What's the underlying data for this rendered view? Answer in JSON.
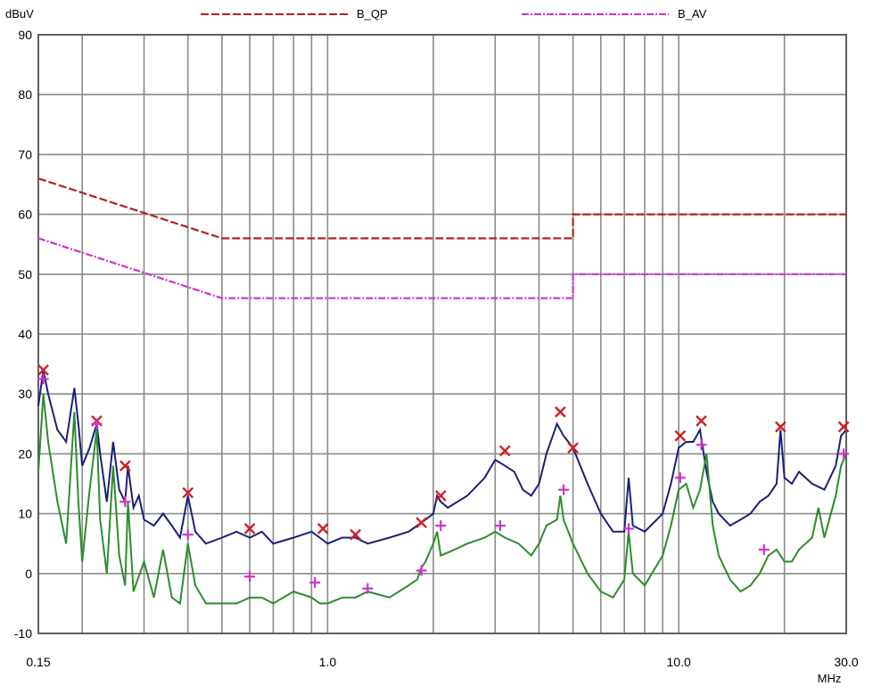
{
  "chart_data": {
    "type": "line",
    "ylabel": "dBuV",
    "xlabel": "MHz",
    "x_scale": "log",
    "xlim": [
      0.15,
      30.0
    ],
    "ylim": [
      -10,
      90
    ],
    "y_ticks": [
      -10,
      0,
      10,
      20,
      30,
      40,
      50,
      60,
      70,
      80,
      90
    ],
    "x_tick_labels": [
      {
        "value": 0.15,
        "label": "0.15"
      },
      {
        "value": 1.0,
        "label": "1.0"
      },
      {
        "value": 10.0,
        "label": "10.0"
      },
      {
        "value": 30.0,
        "label": "30.0"
      }
    ],
    "x_gridlines": [
      0.15,
      0.2,
      0.3,
      0.4,
      0.5,
      0.6,
      0.7,
      0.8,
      0.9,
      1,
      2,
      3,
      4,
      5,
      6,
      7,
      8,
      9,
      10,
      20,
      30
    ],
    "grid": true,
    "legend_position": "top",
    "series": [
      {
        "name": "B_QP",
        "color": "#b22222",
        "style": "dashed",
        "legend": true,
        "points": [
          [
            0.15,
            66
          ],
          [
            0.5,
            56
          ],
          [
            5.0,
            56
          ],
          [
            5.0,
            60
          ],
          [
            30.0,
            60
          ]
        ]
      },
      {
        "name": "B_AV",
        "color": "#cc33cc",
        "style": "dashdot",
        "legend": true,
        "points": [
          [
            0.15,
            56
          ],
          [
            0.5,
            46
          ],
          [
            5.0,
            46
          ],
          [
            5.0,
            50
          ],
          [
            30.0,
            50
          ]
        ]
      },
      {
        "color": "#1c1f7a",
        "style": "solid",
        "legend": false,
        "points": [
          [
            0.15,
            28
          ],
          [
            0.155,
            34
          ],
          [
            0.16,
            30
          ],
          [
            0.17,
            24
          ],
          [
            0.18,
            22
          ],
          [
            0.19,
            31
          ],
          [
            0.195,
            25
          ],
          [
            0.2,
            18
          ],
          [
            0.21,
            21
          ],
          [
            0.22,
            25
          ],
          [
            0.225,
            20
          ],
          [
            0.235,
            12
          ],
          [
            0.245,
            22
          ],
          [
            0.255,
            14
          ],
          [
            0.265,
            12
          ],
          [
            0.27,
            18
          ],
          [
            0.28,
            11
          ],
          [
            0.29,
            13
          ],
          [
            0.3,
            9
          ],
          [
            0.32,
            8
          ],
          [
            0.34,
            10
          ],
          [
            0.36,
            8
          ],
          [
            0.38,
            6
          ],
          [
            0.4,
            13
          ],
          [
            0.42,
            7
          ],
          [
            0.45,
            5
          ],
          [
            0.5,
            6
          ],
          [
            0.55,
            7
          ],
          [
            0.6,
            6
          ],
          [
            0.65,
            7
          ],
          [
            0.7,
            5
          ],
          [
            0.8,
            6
          ],
          [
            0.9,
            7
          ],
          [
            0.95,
            6
          ],
          [
            1.0,
            5
          ],
          [
            1.1,
            6
          ],
          [
            1.2,
            6
          ],
          [
            1.3,
            5
          ],
          [
            1.5,
            6
          ],
          [
            1.7,
            7
          ],
          [
            1.8,
            8
          ],
          [
            1.9,
            9
          ],
          [
            2.0,
            10
          ],
          [
            2.05,
            13
          ],
          [
            2.1,
            12
          ],
          [
            2.2,
            11
          ],
          [
            2.5,
            13
          ],
          [
            2.8,
            16
          ],
          [
            3.0,
            19
          ],
          [
            3.2,
            18
          ],
          [
            3.4,
            17
          ],
          [
            3.6,
            14
          ],
          [
            3.8,
            13
          ],
          [
            4.0,
            15
          ],
          [
            4.2,
            20
          ],
          [
            4.5,
            25
          ],
          [
            4.7,
            23
          ],
          [
            5.0,
            21
          ],
          [
            5.5,
            15
          ],
          [
            6.0,
            10
          ],
          [
            6.5,
            7
          ],
          [
            7.0,
            7
          ],
          [
            7.2,
            16
          ],
          [
            7.4,
            8
          ],
          [
            8.0,
            7
          ],
          [
            9.0,
            10
          ],
          [
            9.5,
            15
          ],
          [
            10.0,
            21
          ],
          [
            10.5,
            22
          ],
          [
            11.0,
            22
          ],
          [
            11.5,
            24
          ],
          [
            12.0,
            17
          ],
          [
            12.5,
            12
          ],
          [
            13.0,
            10
          ],
          [
            14.0,
            8
          ],
          [
            15.0,
            9
          ],
          [
            16.0,
            10
          ],
          [
            17.0,
            12
          ],
          [
            18.0,
            13
          ],
          [
            19.0,
            15
          ],
          [
            19.5,
            24
          ],
          [
            20.0,
            16
          ],
          [
            21.0,
            15
          ],
          [
            22.0,
            17
          ],
          [
            24.0,
            15
          ],
          [
            26.0,
            14
          ],
          [
            28.0,
            18
          ],
          [
            29.0,
            23
          ],
          [
            30.0,
            24
          ]
        ]
      },
      {
        "color": "#2e8b2e",
        "style": "solid",
        "legend": false,
        "points": [
          [
            0.15,
            17
          ],
          [
            0.155,
            30
          ],
          [
            0.16,
            22
          ],
          [
            0.17,
            12
          ],
          [
            0.18,
            5
          ],
          [
            0.19,
            27
          ],
          [
            0.195,
            12
          ],
          [
            0.2,
            2
          ],
          [
            0.21,
            14
          ],
          [
            0.22,
            24
          ],
          [
            0.225,
            9
          ],
          [
            0.235,
            0
          ],
          [
            0.245,
            18
          ],
          [
            0.255,
            3
          ],
          [
            0.265,
            -2
          ],
          [
            0.27,
            12
          ],
          [
            0.28,
            -3
          ],
          [
            0.3,
            2
          ],
          [
            0.32,
            -4
          ],
          [
            0.34,
            4
          ],
          [
            0.36,
            -4
          ],
          [
            0.38,
            -5
          ],
          [
            0.4,
            5
          ],
          [
            0.42,
            -2
          ],
          [
            0.45,
            -5
          ],
          [
            0.5,
            -5
          ],
          [
            0.55,
            -5
          ],
          [
            0.6,
            -4
          ],
          [
            0.65,
            -4
          ],
          [
            0.7,
            -5
          ],
          [
            0.8,
            -3
          ],
          [
            0.9,
            -4
          ],
          [
            0.95,
            -5
          ],
          [
            1.0,
            -5
          ],
          [
            1.1,
            -4
          ],
          [
            1.2,
            -4
          ],
          [
            1.3,
            -3
          ],
          [
            1.5,
            -4
          ],
          [
            1.7,
            -2
          ],
          [
            1.8,
            -1
          ],
          [
            1.85,
            1
          ],
          [
            1.9,
            2
          ],
          [
            2.0,
            5
          ],
          [
            2.05,
            7
          ],
          [
            2.1,
            3
          ],
          [
            2.3,
            4
          ],
          [
            2.5,
            5
          ],
          [
            2.8,
            6
          ],
          [
            3.0,
            7
          ],
          [
            3.2,
            6
          ],
          [
            3.5,
            5
          ],
          [
            3.8,
            3
          ],
          [
            4.0,
            5
          ],
          [
            4.2,
            8
          ],
          [
            4.5,
            9
          ],
          [
            4.6,
            13
          ],
          [
            4.7,
            9
          ],
          [
            5.0,
            5
          ],
          [
            5.5,
            0
          ],
          [
            6.0,
            -3
          ],
          [
            6.5,
            -4
          ],
          [
            7.0,
            -1
          ],
          [
            7.2,
            7
          ],
          [
            7.4,
            0
          ],
          [
            8.0,
            -2
          ],
          [
            9.0,
            3
          ],
          [
            9.5,
            8
          ],
          [
            10.0,
            14
          ],
          [
            10.5,
            15
          ],
          [
            11.0,
            11
          ],
          [
            11.5,
            14
          ],
          [
            12.0,
            20
          ],
          [
            12.5,
            8
          ],
          [
            13.0,
            3
          ],
          [
            14.0,
            -1
          ],
          [
            15.0,
            -3
          ],
          [
            16.0,
            -2
          ],
          [
            17.0,
            0
          ],
          [
            18.0,
            3
          ],
          [
            19.0,
            4
          ],
          [
            20.0,
            2
          ],
          [
            21.0,
            2
          ],
          [
            22.0,
            4
          ],
          [
            24.0,
            6
          ],
          [
            25.0,
            11
          ],
          [
            26.0,
            6
          ],
          [
            28.0,
            13
          ],
          [
            29.0,
            18
          ],
          [
            30.0,
            20
          ]
        ]
      }
    ],
    "qp_markers": {
      "color": "#cc2222",
      "points": [
        [
          0.155,
          34
        ],
        [
          0.22,
          25.5
        ],
        [
          0.265,
          18
        ],
        [
          0.4,
          13.5
        ],
        [
          0.6,
          7.5
        ],
        [
          0.97,
          7.5
        ],
        [
          1.2,
          6.5
        ],
        [
          1.85,
          8.5
        ],
        [
          2.1,
          13
        ],
        [
          3.2,
          20.5
        ],
        [
          4.6,
          27
        ],
        [
          5.0,
          21
        ],
        [
          10.1,
          23
        ],
        [
          11.6,
          25.5
        ],
        [
          19.5,
          24.5
        ],
        [
          29.5,
          24.5
        ]
      ]
    },
    "av_markers": {
      "color": "#cc33cc",
      "points": [
        [
          0.155,
          32.5
        ],
        [
          0.22,
          25
        ],
        [
          0.265,
          12
        ],
        [
          0.4,
          6.5
        ],
        [
          0.6,
          -0.5
        ],
        [
          0.92,
          -1.5
        ],
        [
          1.3,
          -2.5
        ],
        [
          1.85,
          0.5
        ],
        [
          2.1,
          8
        ],
        [
          3.1,
          8
        ],
        [
          4.7,
          14
        ],
        [
          7.2,
          7.5
        ],
        [
          10.1,
          16
        ],
        [
          11.6,
          21.5
        ],
        [
          17.5,
          4
        ],
        [
          29.5,
          20
        ]
      ]
    }
  }
}
